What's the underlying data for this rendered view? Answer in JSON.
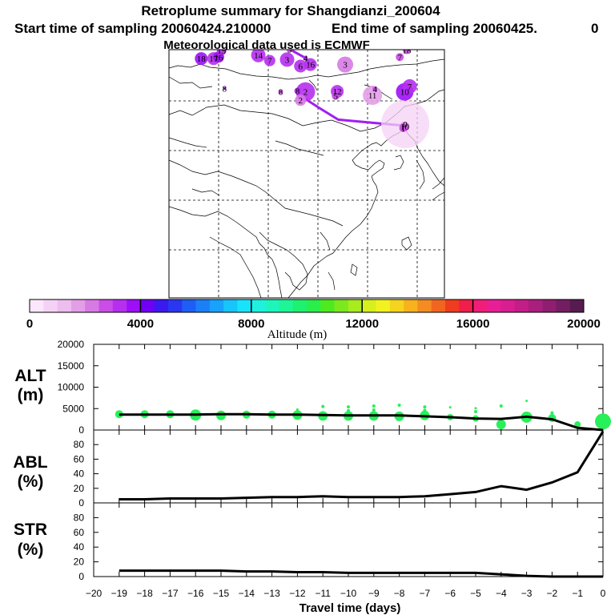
{
  "header": {
    "title": "Retroplume summary for Shangdianzi_200604",
    "start_text": "Start time of sampling 20060424.210000",
    "end_text": "End time of sampling 20060425.",
    "end_trunc": "0",
    "met_text": "Meteorological data used is ECMWF"
  },
  "map": {
    "labels": [
      {
        "text": "18",
        "lon": 76.5,
        "lat": 54.2,
        "r": 8,
        "level": 7
      },
      {
        "text": "17",
        "lon": 79,
        "lat": 54.2,
        "r": 8,
        "level": 6
      },
      {
        "text": "16",
        "lon": 80,
        "lat": 54.5,
        "r": 7,
        "level": 7
      },
      {
        "text": "19",
        "lon": 80.6,
        "lat": 55.8,
        "r": 6,
        "level": 6
      },
      {
        "text": "14",
        "lon": 88,
        "lat": 54.9,
        "r": 9,
        "level": 6
      },
      {
        "text": "7",
        "lon": 90.3,
        "lat": 53.8,
        "r": 7,
        "level": 6
      },
      {
        "text": "3",
        "lon": 93.8,
        "lat": 54,
        "r": 9,
        "level": 6
      },
      {
        "text": "5",
        "lon": 94.3,
        "lat": 56.1,
        "r": 4,
        "level": 5
      },
      {
        "text": "4",
        "lon": 97.5,
        "lat": 54.3,
        "r": 3,
        "level": 6
      },
      {
        "text": "16",
        "lon": 98.5,
        "lat": 53,
        "r": 8,
        "level": 6
      },
      {
        "text": "6",
        "lon": 96.5,
        "lat": 52.7,
        "r": 8,
        "level": 6
      },
      {
        "text": "3",
        "lon": 105.5,
        "lat": 53,
        "r": 10,
        "level": 4
      },
      {
        "text": "7",
        "lon": 116.5,
        "lat": 54.5,
        "r": 5,
        "level": 5
      },
      {
        "text": "18",
        "lon": 117.9,
        "lat": 55.9,
        "r": 5,
        "level": 5
      },
      {
        "text": "7",
        "lon": 118.5,
        "lat": 48.6,
        "r": 9,
        "level": 6
      },
      {
        "text": "10",
        "lon": 117.5,
        "lat": 47.5,
        "r": 11,
        "level": 7
      },
      {
        "text": "4",
        "lon": 111.5,
        "lat": 48.1,
        "r": 3,
        "level": 5
      },
      {
        "text": "11",
        "lon": 111,
        "lat": 46.8,
        "r": 12,
        "level": 3
      },
      {
        "text": "12",
        "lon": 103.9,
        "lat": 47.6,
        "r": 8,
        "level": 6
      },
      {
        "text": "5",
        "lon": 103.6,
        "lat": 46.7,
        "r": 5,
        "level": 5
      },
      {
        "text": "2",
        "lon": 97.5,
        "lat": 47.5,
        "r": 12,
        "level": 6
      },
      {
        "text": "2",
        "lon": 96.5,
        "lat": 45.8,
        "r": 7,
        "level": 4
      },
      {
        "text": "8",
        "lon": 92.5,
        "lat": 47.5,
        "r": 3,
        "level": 5
      },
      {
        "text": "8",
        "lon": 95.9,
        "lat": 47.7,
        "r": 4,
        "level": 6
      },
      {
        "text": "8",
        "lon": 81.2,
        "lat": 48.2,
        "r": 2,
        "level": 7
      },
      {
        "text": "0",
        "lon": 117.6,
        "lat": 41,
        "r": 30,
        "level": 1
      },
      {
        "text": "10",
        "lon": 117.5,
        "lat": 40.5,
        "r": 6,
        "level": 4
      },
      {
        "text": "1",
        "lon": 117.2,
        "lat": 40.2,
        "r": 5,
        "level": 5
      }
    ],
    "paths": [
      [
        [
          94.3,
          56.1
        ],
        [
          97.5,
          54.3
        ],
        [
          98.5,
          53
        ]
      ],
      [
        [
          96.5,
          46.7
        ],
        [
          100.4,
          44.2
        ],
        [
          104.1,
          41.9
        ],
        [
          117.3,
          40.7
        ]
      ]
    ]
  },
  "colorbar": {
    "title": "Altitude (m)",
    "ticks": [
      "0",
      "4000",
      "8000",
      "12000",
      "16000",
      "20000"
    ],
    "colors": [
      "#fbe6fb",
      "#f5d2f5",
      "#eebdef",
      "#e39ee8",
      "#d77ae4",
      "#c94de6",
      "#b72fee",
      "#9d10f7",
      "#6f00f4",
      "#3a1aee",
      "#2a37f0",
      "#1e5ef5",
      "#1c7ff8",
      "#18a2fb",
      "#17c5fb",
      "#17e4fb",
      "#1ef2df",
      "#1ef5bc",
      "#1ef596",
      "#1ef170",
      "#2aee4a",
      "#4eea20",
      "#7ce81e",
      "#a8eb1e",
      "#d6f01e",
      "#f2f220",
      "#f5d41f",
      "#f7b21e",
      "#f48c22",
      "#f06620",
      "#f03c1e",
      "#f01e4a",
      "#f01e78",
      "#e81e96",
      "#d81e90",
      "#c31e88",
      "#aa1e7e",
      "#901e70",
      "#731e62",
      "#561c50"
    ]
  },
  "panels": {
    "alt_label": "ALT",
    "alt_unit": "(m)",
    "abl_label": "ABL",
    "abl_unit": "(%)",
    "str_label": "STR",
    "str_unit": "(%)",
    "xlabel": "Travel time (days)"
  },
  "chart_data": [
    {
      "type": "line",
      "title": "ALT",
      "ylabel": "(m)",
      "ylim": [
        0,
        20000
      ],
      "yticks": [
        0,
        5000,
        10000,
        15000,
        20000
      ],
      "xlim": [
        -20,
        0
      ],
      "x": [
        -19,
        -18,
        -17,
        -16,
        -15,
        -14,
        -13,
        -12,
        -11,
        -10,
        -9,
        -8,
        -7,
        -6,
        -5,
        -4,
        -3,
        -2,
        -1,
        0
      ],
      "mean_altitude": [
        3600,
        3600,
        3600,
        3600,
        3700,
        3700,
        3600,
        3600,
        3500,
        3400,
        3400,
        3400,
        3200,
        3000,
        2700,
        2600,
        3100,
        2500,
        500,
        0
      ],
      "cloud": [
        {
          "x": -19,
          "y": 3700,
          "size": 5
        },
        {
          "x": -18,
          "y": 3700,
          "size": 5
        },
        {
          "x": -17,
          "y": 3700,
          "size": 5
        },
        {
          "x": -16,
          "y": 3500,
          "size": 7
        },
        {
          "x": -15,
          "y": 3400,
          "size": 6
        },
        {
          "x": -14,
          "y": 3600,
          "size": 5
        },
        {
          "x": -13,
          "y": 3600,
          "size": 5
        },
        {
          "x": -12,
          "y": 3500,
          "size": 6
        },
        {
          "x": -11,
          "y": 3300,
          "size": 6
        },
        {
          "x": -10,
          "y": 3300,
          "size": 6
        },
        {
          "x": -9,
          "y": 3300,
          "size": 6
        },
        {
          "x": -8,
          "y": 3200,
          "size": 6
        },
        {
          "x": -7,
          "y": 3400,
          "size": 6
        },
        {
          "x": -6,
          "y": 3000,
          "size": 4
        },
        {
          "x": -5,
          "y": 2700,
          "size": 4
        },
        {
          "x": -4,
          "y": 1300,
          "size": 6
        },
        {
          "x": -3,
          "y": 3000,
          "size": 7
        },
        {
          "x": -2,
          "y": 2800,
          "size": 5
        },
        {
          "x": -1,
          "y": 1300,
          "size": 4
        },
        {
          "x": 0,
          "y": 2000,
          "size": 10
        },
        {
          "x": -11,
          "y": 5500,
          "size": 2
        },
        {
          "x": -10,
          "y": 5400,
          "size": 2
        },
        {
          "x": -9,
          "y": 5600,
          "size": 2
        },
        {
          "x": -8,
          "y": 5800,
          "size": 2
        },
        {
          "x": -7,
          "y": 5400,
          "size": 2
        },
        {
          "x": -6,
          "y": 5300,
          "size": 1.5
        },
        {
          "x": -5,
          "y": 5100,
          "size": 1.5
        },
        {
          "x": -4,
          "y": 5600,
          "size": 2
        },
        {
          "x": -3,
          "y": 6800,
          "size": 1.5
        },
        {
          "x": -9,
          "y": 4700,
          "size": 2
        },
        {
          "x": -10,
          "y": 4500,
          "size": 2
        },
        {
          "x": -7,
          "y": 4600,
          "size": 2
        },
        {
          "x": -12,
          "y": 4800,
          "size": 1.5
        },
        {
          "x": -5,
          "y": 4300,
          "size": 2
        },
        {
          "x": -2,
          "y": 4000,
          "size": 2
        }
      ]
    },
    {
      "type": "line",
      "title": "ABL",
      "ylabel": "(%)",
      "ylim": [
        0,
        100
      ],
      "yticks": [
        0,
        20,
        40,
        60,
        80
      ],
      "x": [
        -19,
        -18,
        -17,
        -16,
        -15,
        -14,
        -13,
        -12,
        -11,
        -10,
        -9,
        -8,
        -7,
        -6,
        -5,
        -4,
        -3,
        -2,
        -1,
        0
      ],
      "values": [
        5,
        5,
        6,
        6,
        6,
        7,
        8,
        8,
        9,
        8,
        8,
        8,
        9,
        12,
        15,
        23,
        18,
        28,
        42,
        98
      ]
    },
    {
      "type": "line",
      "title": "STR",
      "ylabel": "(%)",
      "ylim": [
        0,
        100
      ],
      "yticks": [
        0,
        20,
        40,
        60,
        80
      ],
      "x": [
        -19,
        -18,
        -17,
        -16,
        -15,
        -14,
        -13,
        -12,
        -11,
        -10,
        -9,
        -8,
        -7,
        -6,
        -5,
        -4,
        -3,
        -2,
        -1,
        0
      ],
      "values": [
        8,
        8,
        8,
        8,
        8,
        7,
        7,
        6,
        6,
        5,
        5,
        5,
        5,
        5,
        5,
        3,
        1,
        0,
        0,
        0
      ]
    }
  ],
  "x_ticks": [
    "-20",
    "-19",
    "-18",
    "-17",
    "-16",
    "-15",
    "-14",
    "-13",
    "-12",
    "-11",
    "-10",
    "-9",
    "-8",
    "-7",
    "-6",
    "-5",
    "-4",
    "-3",
    "-2",
    "-1",
    "0"
  ]
}
